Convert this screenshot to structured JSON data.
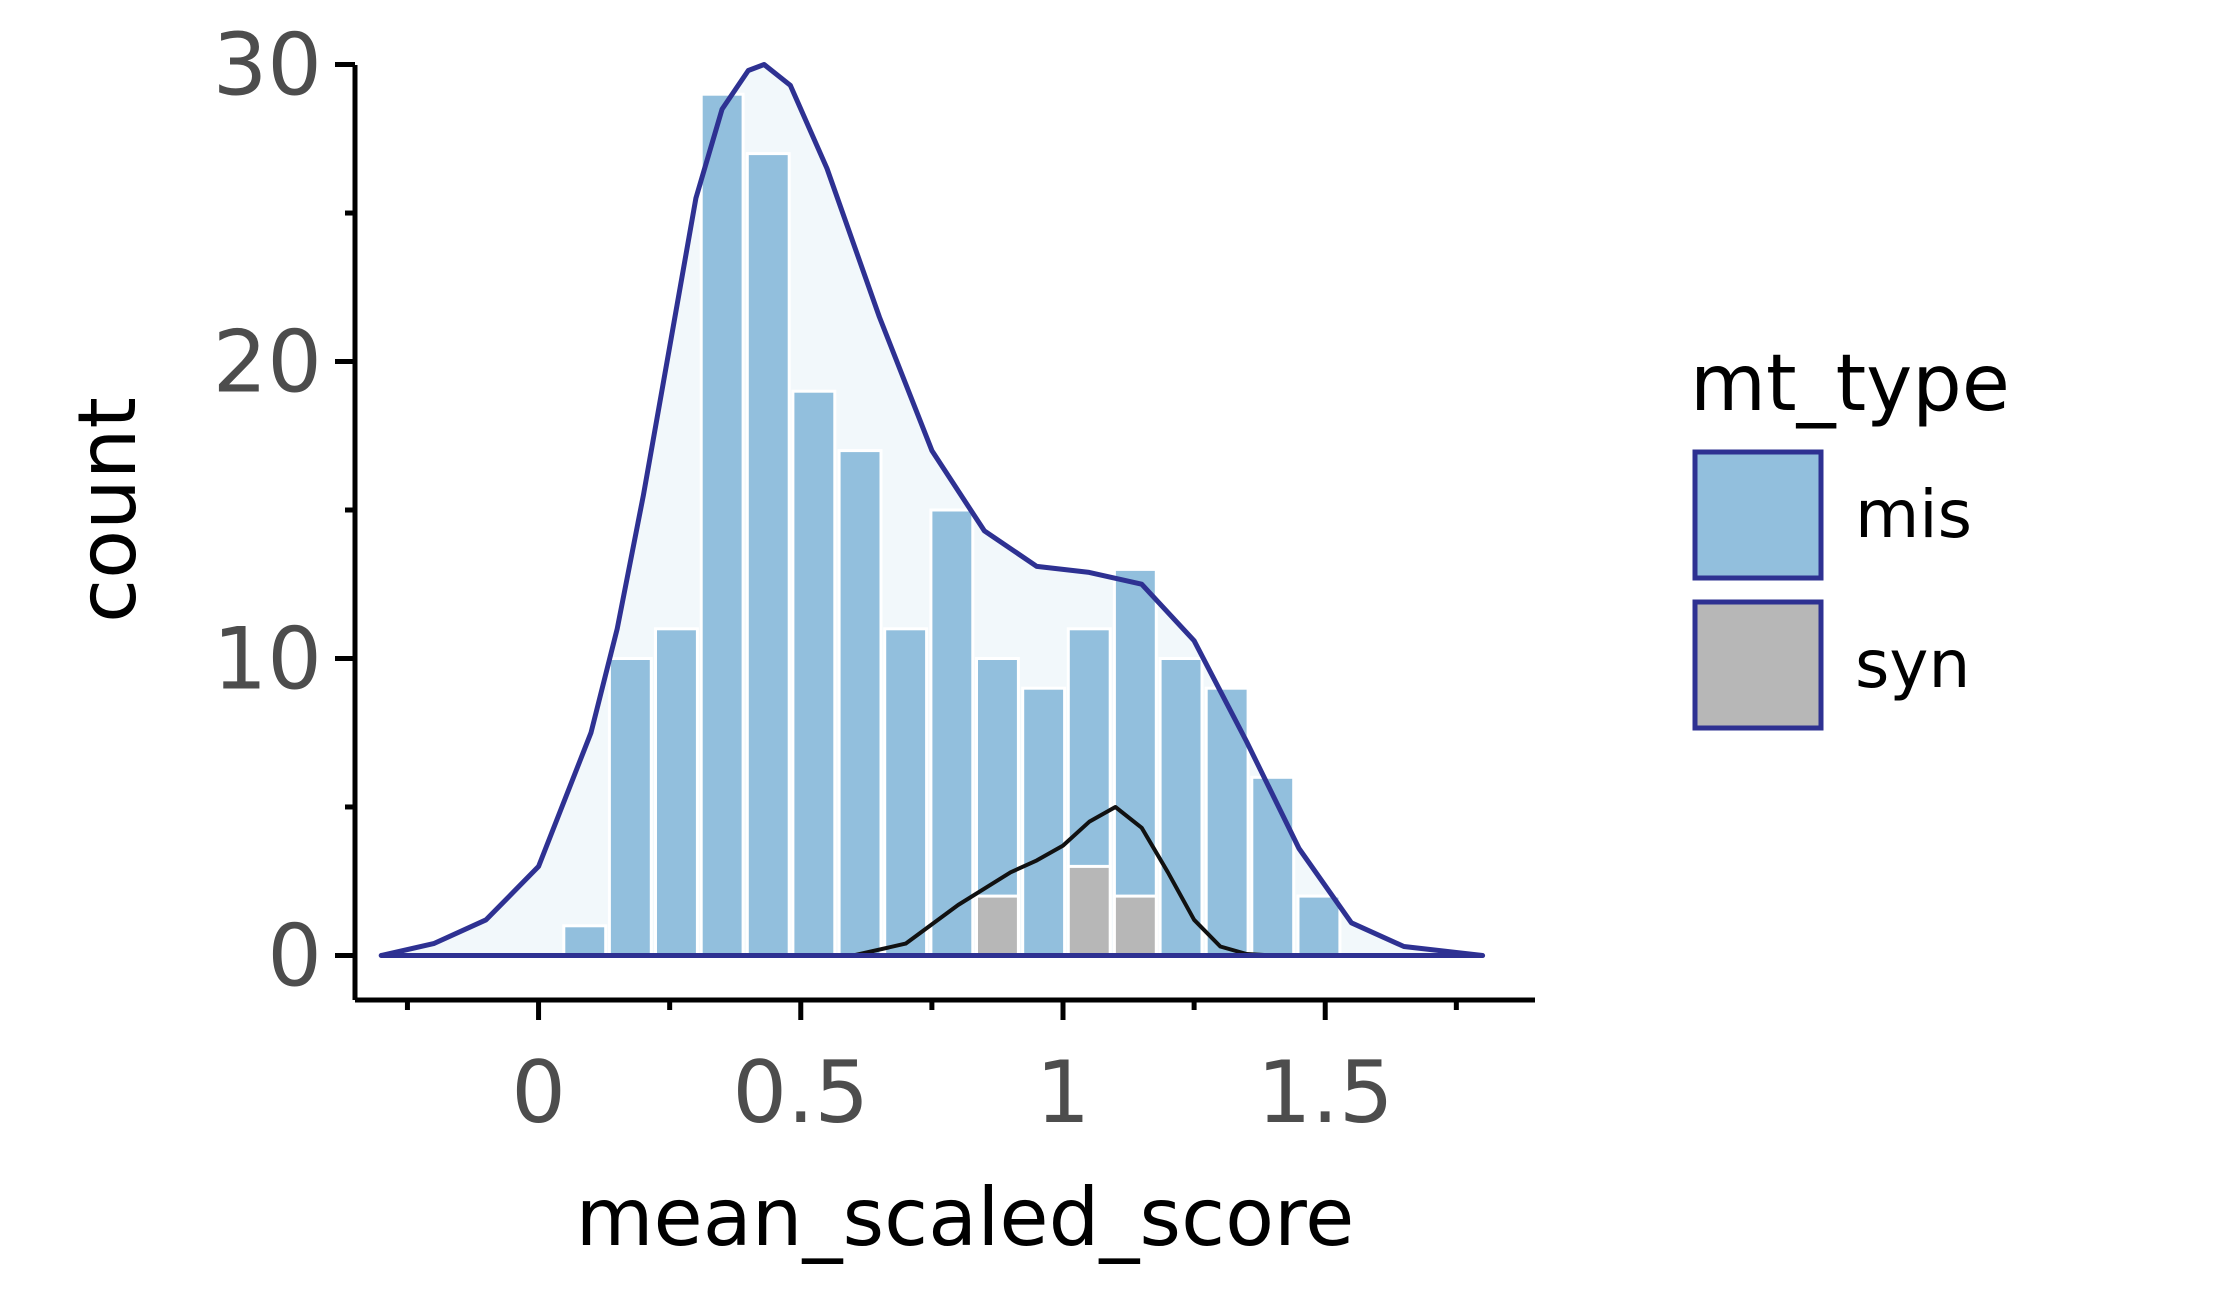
{
  "chart_data": {
    "type": "bar",
    "xlabel": "mean_scaled_score",
    "ylabel": "count",
    "xlim": [
      -0.35,
      1.9
    ],
    "ylim": [
      -1.5,
      31.5
    ],
    "x_ticks": [
      {
        "value": 0,
        "label": "0"
      },
      {
        "value": 0.5,
        "label": "0.5"
      },
      {
        "value": 1,
        "label": "1"
      },
      {
        "value": 1.5,
        "label": "1.5"
      }
    ],
    "x_minor_ticks": [
      -0.25,
      0.25,
      0.75,
      1.25,
      1.75
    ],
    "y_ticks": [
      {
        "value": 0,
        "label": "0"
      },
      {
        "value": 10,
        "label": "10"
      },
      {
        "value": 20,
        "label": "20"
      },
      {
        "value": 30,
        "label": "30"
      }
    ],
    "y_minor_ticks": [
      5,
      15,
      25
    ],
    "bin_width": 0.0875,
    "series": [
      {
        "name": "mis",
        "color": "#92bfdd",
        "bins": [
          {
            "x": 0.088,
            "count": 1
          },
          {
            "x": 0.175,
            "count": 10
          },
          {
            "x": 0.263,
            "count": 11
          },
          {
            "x": 0.35,
            "count": 29
          },
          {
            "x": 0.438,
            "count": 27
          },
          {
            "x": 0.525,
            "count": 19
          },
          {
            "x": 0.613,
            "count": 17
          },
          {
            "x": 0.7,
            "count": 11
          },
          {
            "x": 0.788,
            "count": 15
          },
          {
            "x": 0.875,
            "count": 10
          },
          {
            "x": 0.963,
            "count": 9
          },
          {
            "x": 1.05,
            "count": 11
          },
          {
            "x": 1.138,
            "count": 13
          },
          {
            "x": 1.225,
            "count": 10
          },
          {
            "x": 1.313,
            "count": 9
          },
          {
            "x": 1.4,
            "count": 6
          },
          {
            "x": 1.488,
            "count": 2
          }
        ]
      },
      {
        "name": "syn",
        "color": "#b7b7b7",
        "bins": [
          {
            "x": 0.875,
            "count": 2
          },
          {
            "x": 1.05,
            "count": 3
          },
          {
            "x": 1.138,
            "count": 2
          }
        ]
      }
    ],
    "density": [
      {
        "series": "mis",
        "stroke": "#2e3192",
        "fill": "#f2f8fb",
        "points": [
          [
            -0.3,
            0
          ],
          [
            -0.2,
            0.4
          ],
          [
            -0.1,
            1.2
          ],
          [
            0.0,
            3.0
          ],
          [
            0.1,
            7.5
          ],
          [
            0.15,
            11
          ],
          [
            0.2,
            15.5
          ],
          [
            0.25,
            20.5
          ],
          [
            0.3,
            25.5
          ],
          [
            0.35,
            28.5
          ],
          [
            0.4,
            29.8
          ],
          [
            0.43,
            30
          ],
          [
            0.48,
            29.3
          ],
          [
            0.55,
            26.5
          ],
          [
            0.65,
            21.5
          ],
          [
            0.75,
            17
          ],
          [
            0.85,
            14.3
          ],
          [
            0.95,
            13.1
          ],
          [
            1.05,
            12.9
          ],
          [
            1.15,
            12.5
          ],
          [
            1.25,
            10.6
          ],
          [
            1.35,
            7.2
          ],
          [
            1.45,
            3.6
          ],
          [
            1.55,
            1.1
          ],
          [
            1.65,
            0.3
          ],
          [
            1.75,
            0.1
          ],
          [
            1.8,
            0
          ]
        ]
      },
      {
        "series": "syn",
        "stroke": "#111111",
        "points": [
          [
            0.6,
            0
          ],
          [
            0.7,
            0.4
          ],
          [
            0.8,
            1.7
          ],
          [
            0.9,
            2.8
          ],
          [
            0.95,
            3.2
          ],
          [
            1.0,
            3.7
          ],
          [
            1.05,
            4.5
          ],
          [
            1.1,
            5
          ],
          [
            1.15,
            4.3
          ],
          [
            1.2,
            2.8
          ],
          [
            1.25,
            1.2
          ],
          [
            1.3,
            0.3
          ],
          [
            1.35,
            0.05
          ],
          [
            1.4,
            0
          ]
        ]
      }
    ],
    "legend": {
      "title": "mt_type",
      "placement": "right",
      "border_color": "#2e3192",
      "items": [
        {
          "label": "mis",
          "color": "#92bfdd"
        },
        {
          "label": "syn",
          "color": "#b7b7b7"
        }
      ]
    }
  }
}
